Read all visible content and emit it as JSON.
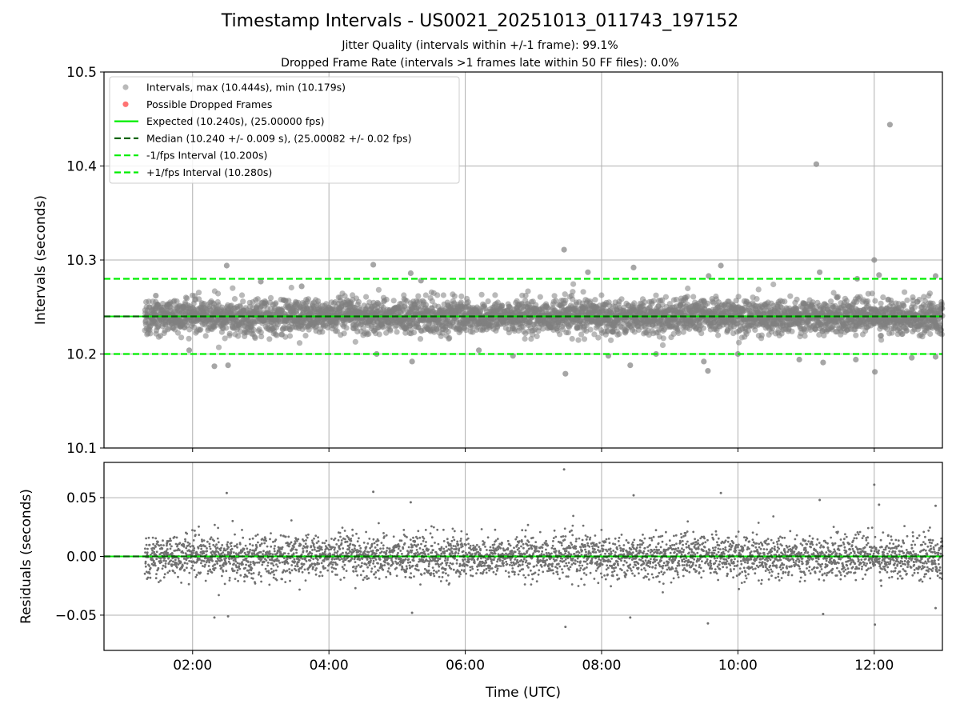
{
  "figure": {
    "title": "Timestamp Intervals - US0021_20251013_011743_197152",
    "subtitle1": "Jitter Quality (intervals within +/-1 frame): 99.1%",
    "subtitle2": "Dropped Frame Rate (intervals >1 frames late within 50 FF files): 0.0%"
  },
  "colors": {
    "points": "#808080",
    "dropped": "#ff0000",
    "expected": "#00ee00",
    "median": "#006400",
    "bounds": "#00ee00",
    "grid": "#b0b0b0"
  },
  "chart_data": [
    {
      "type": "scatter",
      "panel": "top",
      "ylabel": "Intervals (seconds)",
      "xlim_hours": [
        0.7,
        13.0
      ],
      "ylim": [
        10.1,
        10.5
      ],
      "yticks": [
        10.1,
        10.2,
        10.3,
        10.4,
        10.5
      ],
      "ytick_labels": [
        "10.1",
        "10.2",
        "10.3",
        "10.4",
        "10.5"
      ],
      "xticks_hours": [
        2,
        4,
        6,
        8,
        10,
        12
      ],
      "grid": true,
      "legend_position": "upper-left",
      "legend": [
        {
          "label": "Intervals, max (10.444s), min (10.179s)",
          "kind": "marker",
          "color": "#808080"
        },
        {
          "label": "Possible Dropped Frames",
          "kind": "marker",
          "color": "#ff0000"
        },
        {
          "label": "Expected (10.240s), (25.00000 fps)",
          "kind": "solid",
          "color": "#00ee00"
        },
        {
          "label": "Median (10.240 +/- 0.009 s), (25.00082 +/- 0.02 fps)",
          "kind": "dashed",
          "color": "#006400"
        },
        {
          "label": "-1/fps Interval (10.200s)",
          "kind": "dashed",
          "color": "#00ee00"
        },
        {
          "label": "+1/fps Interval (10.280s)",
          "kind": "dashed",
          "color": "#00ee00"
        }
      ],
      "reference_lines": {
        "expected": 10.24,
        "median": 10.24,
        "lower": 10.2,
        "upper": 10.28
      },
      "series": {
        "name": "Intervals",
        "time_range_hours": [
          1.3,
          13.0
        ],
        "approx_point_count": 4100,
        "center": 10.24,
        "typical_spread": 0.009,
        "notable_points": [
          {
            "t": 1.46,
            "y": 10.262
          },
          {
            "t": 1.95,
            "y": 10.204
          },
          {
            "t": 2.32,
            "y": 10.187
          },
          {
            "t": 2.5,
            "y": 10.294
          },
          {
            "t": 2.52,
            "y": 10.188
          },
          {
            "t": 3.0,
            "y": 10.277
          },
          {
            "t": 3.6,
            "y": 10.272
          },
          {
            "t": 4.65,
            "y": 10.295
          },
          {
            "t": 4.7,
            "y": 10.2
          },
          {
            "t": 5.2,
            "y": 10.286
          },
          {
            "t": 5.22,
            "y": 10.192
          },
          {
            "t": 5.35,
            "y": 10.278
          },
          {
            "t": 6.2,
            "y": 10.204
          },
          {
            "t": 6.7,
            "y": 10.198
          },
          {
            "t": 7.45,
            "y": 10.311
          },
          {
            "t": 7.47,
            "y": 10.179
          },
          {
            "t": 7.8,
            "y": 10.287
          },
          {
            "t": 8.1,
            "y": 10.198
          },
          {
            "t": 8.42,
            "y": 10.188
          },
          {
            "t": 8.47,
            "y": 10.292
          },
          {
            "t": 8.8,
            "y": 10.2
          },
          {
            "t": 9.5,
            "y": 10.192
          },
          {
            "t": 9.56,
            "y": 10.182
          },
          {
            "t": 9.57,
            "y": 10.283
          },
          {
            "t": 9.75,
            "y": 10.294
          },
          {
            "t": 10.0,
            "y": 10.2
          },
          {
            "t": 10.9,
            "y": 10.194
          },
          {
            "t": 11.15,
            "y": 10.402
          },
          {
            "t": 11.2,
            "y": 10.287
          },
          {
            "t": 11.25,
            "y": 10.191
          },
          {
            "t": 11.75,
            "y": 10.28
          },
          {
            "t": 11.73,
            "y": 10.194
          },
          {
            "t": 12.0,
            "y": 10.3
          },
          {
            "t": 12.01,
            "y": 10.181
          },
          {
            "t": 12.07,
            "y": 10.284
          },
          {
            "t": 12.23,
            "y": 10.444
          },
          {
            "t": 12.55,
            "y": 10.196
          },
          {
            "t": 12.9,
            "y": 10.197
          },
          {
            "t": 12.9,
            "y": 10.283
          }
        ]
      },
      "dropped_frames": []
    },
    {
      "type": "scatter",
      "panel": "bottom",
      "ylabel": "Residuals (seconds)",
      "xlabel": "Time (UTC)",
      "xlim_hours": [
        0.7,
        13.0
      ],
      "ylim": [
        -0.08,
        0.08
      ],
      "yticks": [
        -0.05,
        0.0,
        0.05
      ],
      "ytick_labels": [
        "−0.05",
        "0.00",
        "0.05"
      ],
      "xticks_hours": [
        2,
        4,
        6,
        8,
        10,
        12
      ],
      "xtick_labels": [
        "02:00",
        "04:00",
        "06:00",
        "08:00",
        "10:00",
        "12:00"
      ],
      "grid": true,
      "reference_lines": {
        "expected": 0.0,
        "median": 0.0
      },
      "series": {
        "name": "Residuals",
        "time_range_hours": [
          1.3,
          13.0
        ],
        "approx_point_count": 4100,
        "center": 0.0,
        "typical_spread": 0.009,
        "notable_points": [
          {
            "t": 2.32,
            "y": -0.052
          },
          {
            "t": 2.5,
            "y": 0.054
          },
          {
            "t": 2.52,
            "y": -0.051
          },
          {
            "t": 4.65,
            "y": 0.055
          },
          {
            "t": 5.2,
            "y": 0.046
          },
          {
            "t": 5.22,
            "y": -0.048
          },
          {
            "t": 7.45,
            "y": 0.074
          },
          {
            "t": 7.47,
            "y": -0.06
          },
          {
            "t": 8.42,
            "y": -0.052
          },
          {
            "t": 8.47,
            "y": 0.052
          },
          {
            "t": 9.56,
            "y": -0.057
          },
          {
            "t": 9.75,
            "y": 0.054
          },
          {
            "t": 11.2,
            "y": 0.048
          },
          {
            "t": 11.25,
            "y": -0.049
          },
          {
            "t": 12.0,
            "y": 0.061
          },
          {
            "t": 12.01,
            "y": -0.058
          },
          {
            "t": 12.07,
            "y": 0.044
          },
          {
            "t": 12.9,
            "y": -0.044
          },
          {
            "t": 12.9,
            "y": 0.043
          }
        ]
      }
    }
  ]
}
